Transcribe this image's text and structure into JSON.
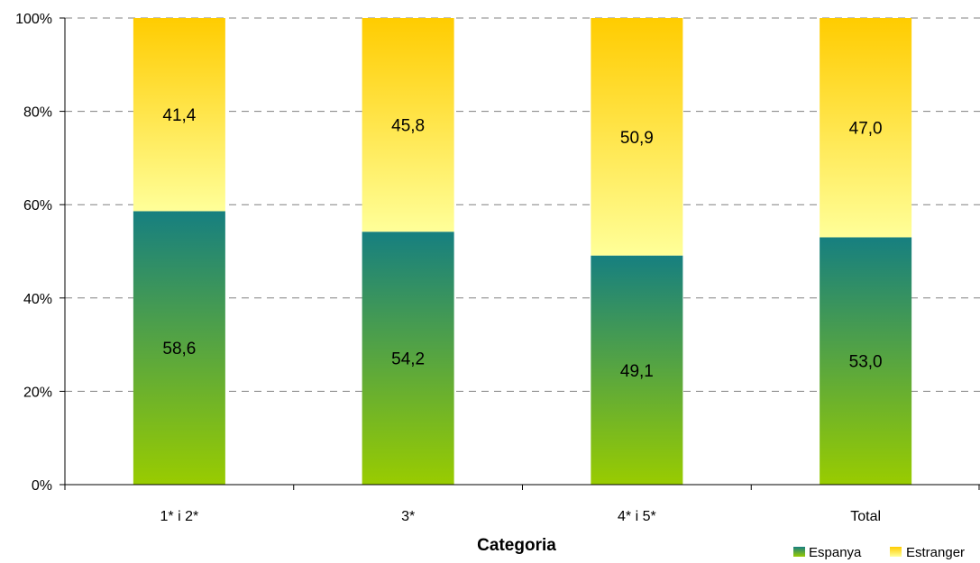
{
  "chart_data": {
    "type": "bar",
    "stacked": true,
    "percent_stacked": true,
    "xlabel": "Categoria",
    "ylabel": "",
    "categories": [
      "1* i 2*",
      "3*",
      "4* i 5*",
      "Total"
    ],
    "series": [
      {
        "name": "Espanya",
        "values": [
          58.6,
          54.2,
          49.1,
          53.0
        ],
        "labels": [
          "58,6",
          "54,2",
          "49,1",
          "53,0"
        ],
        "color_top": "#167f80",
        "color_bottom": "#99cc00"
      },
      {
        "name": "Estranger",
        "values": [
          41.4,
          45.8,
          50.9,
          47.0
        ],
        "labels": [
          "41,4",
          "45,8",
          "50,9",
          "47,0"
        ],
        "color_top": "#ffcc00",
        "color_bottom": "#ffff99"
      }
    ],
    "ylim": [
      0,
      100
    ],
    "yticks": [
      "0%",
      "20%",
      "40%",
      "60%",
      "80%",
      "100%"
    ],
    "grid": true,
    "legend_position": "bottom-right"
  }
}
